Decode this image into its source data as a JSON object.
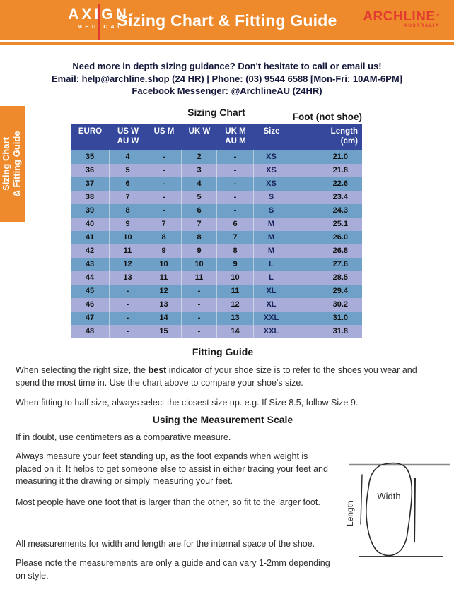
{
  "colors": {
    "orange": "#EF8A2C",
    "brand_red": "#E23B31",
    "table_header_navy": "#35489B",
    "row_blue": "#6FA0C7",
    "row_periwinkle": "#A7ADD8"
  },
  "banner": {
    "axign_word": "AXIGN",
    "axign_tm": "™",
    "axign_sub": "MEDICAL",
    "title": "Sizing Chart & Fitting Guide",
    "archline_word": "ARCHLINE",
    "archline_tm": "™",
    "archline_sub": "AUSTRALIA"
  },
  "contact": {
    "line1": "Need more in depth sizing guidance? Don't hesitate to call or email us!",
    "line2": "Email: help@archline.shop (24 HR) | Phone: (03) 9544 6588 [Mon-Fri: 10AM-6PM]",
    "line3": "Facebook Messenger: @ArchlineAU (24HR)"
  },
  "side_tab": {
    "line1": "Sizing Chart",
    "line2": "& Fitting Guide"
  },
  "sizing_chart": {
    "heading": "Sizing Chart",
    "foot_note": "Foot (not shoe)",
    "columns": [
      {
        "l1": "EURO",
        "l2": ""
      },
      {
        "l1": "US W",
        "l2": "AU W"
      },
      {
        "l1": "US M",
        "l2": ""
      },
      {
        "l1": "UK W",
        "l2": ""
      },
      {
        "l1": "UK M",
        "l2": "AU M"
      },
      {
        "l1": "Size",
        "l2": ""
      },
      {
        "l1": "Length",
        "l2": "(cm)"
      }
    ],
    "rows": [
      [
        "35",
        "4",
        "-",
        "2",
        "-",
        "XS",
        "21.0"
      ],
      [
        "36",
        "5",
        "-",
        "3",
        "-",
        "XS",
        "21.8"
      ],
      [
        "37",
        "6",
        "-",
        "4",
        "-",
        "XS",
        "22.6"
      ],
      [
        "38",
        "7",
        "-",
        "5",
        "-",
        "S",
        "23.4"
      ],
      [
        "39",
        "8",
        "-",
        "6",
        "-",
        "S",
        "24.3"
      ],
      [
        "40",
        "9",
        "7",
        "7",
        "6",
        "M",
        "25.1"
      ],
      [
        "41",
        "10",
        "8",
        "8",
        "7",
        "M",
        "26.0"
      ],
      [
        "42",
        "11",
        "9",
        "9",
        "8",
        "M",
        "26.8"
      ],
      [
        "43",
        "12",
        "10",
        "10",
        "9",
        "L",
        "27.6"
      ],
      [
        "44",
        "13",
        "11",
        "11",
        "10",
        "L",
        "28.5"
      ],
      [
        "45",
        "-",
        "12",
        "-",
        "11",
        "XL",
        "29.4"
      ],
      [
        "46",
        "-",
        "13",
        "-",
        "12",
        "XL",
        "30.2"
      ],
      [
        "47",
        "-",
        "14",
        "-",
        "13",
        "XXL",
        "31.0"
      ],
      [
        "48",
        "-",
        "15",
        "-",
        "14",
        "XXL",
        "31.8"
      ]
    ]
  },
  "fitting_guide": {
    "heading": "Fitting Guide",
    "p1_before": "When selecting the right size, the ",
    "p1_bold": "best",
    "p1_after": " indicator of your shoe size is to refer to the shoes you wear and spend the most time in. Use the chart above to compare your shoe's size.",
    "p2": "When fitting to half size, always select the closest size up. e.g. If Size 8.5, follow Size 9."
  },
  "measurement": {
    "heading": "Using the Measurement Scale",
    "p1": "If in doubt, use centimeters as a comparative measure.",
    "p2": "Always measure your feet standing up, as the foot expands when weight is placed on it. It helps to get someone else to assist in either tracing your feet and measuring it the drawing or simply measuring your feet.",
    "p3": "Most people have one foot that is larger than the other, so fit to the larger foot.",
    "p4": "All measurements for width and length are for the internal space of the shoe.",
    "p5": "Please note the measurements are only a guide and can vary 1-2mm depending on style.",
    "diagram": {
      "width_label": "Width",
      "length_label": "Length"
    }
  }
}
